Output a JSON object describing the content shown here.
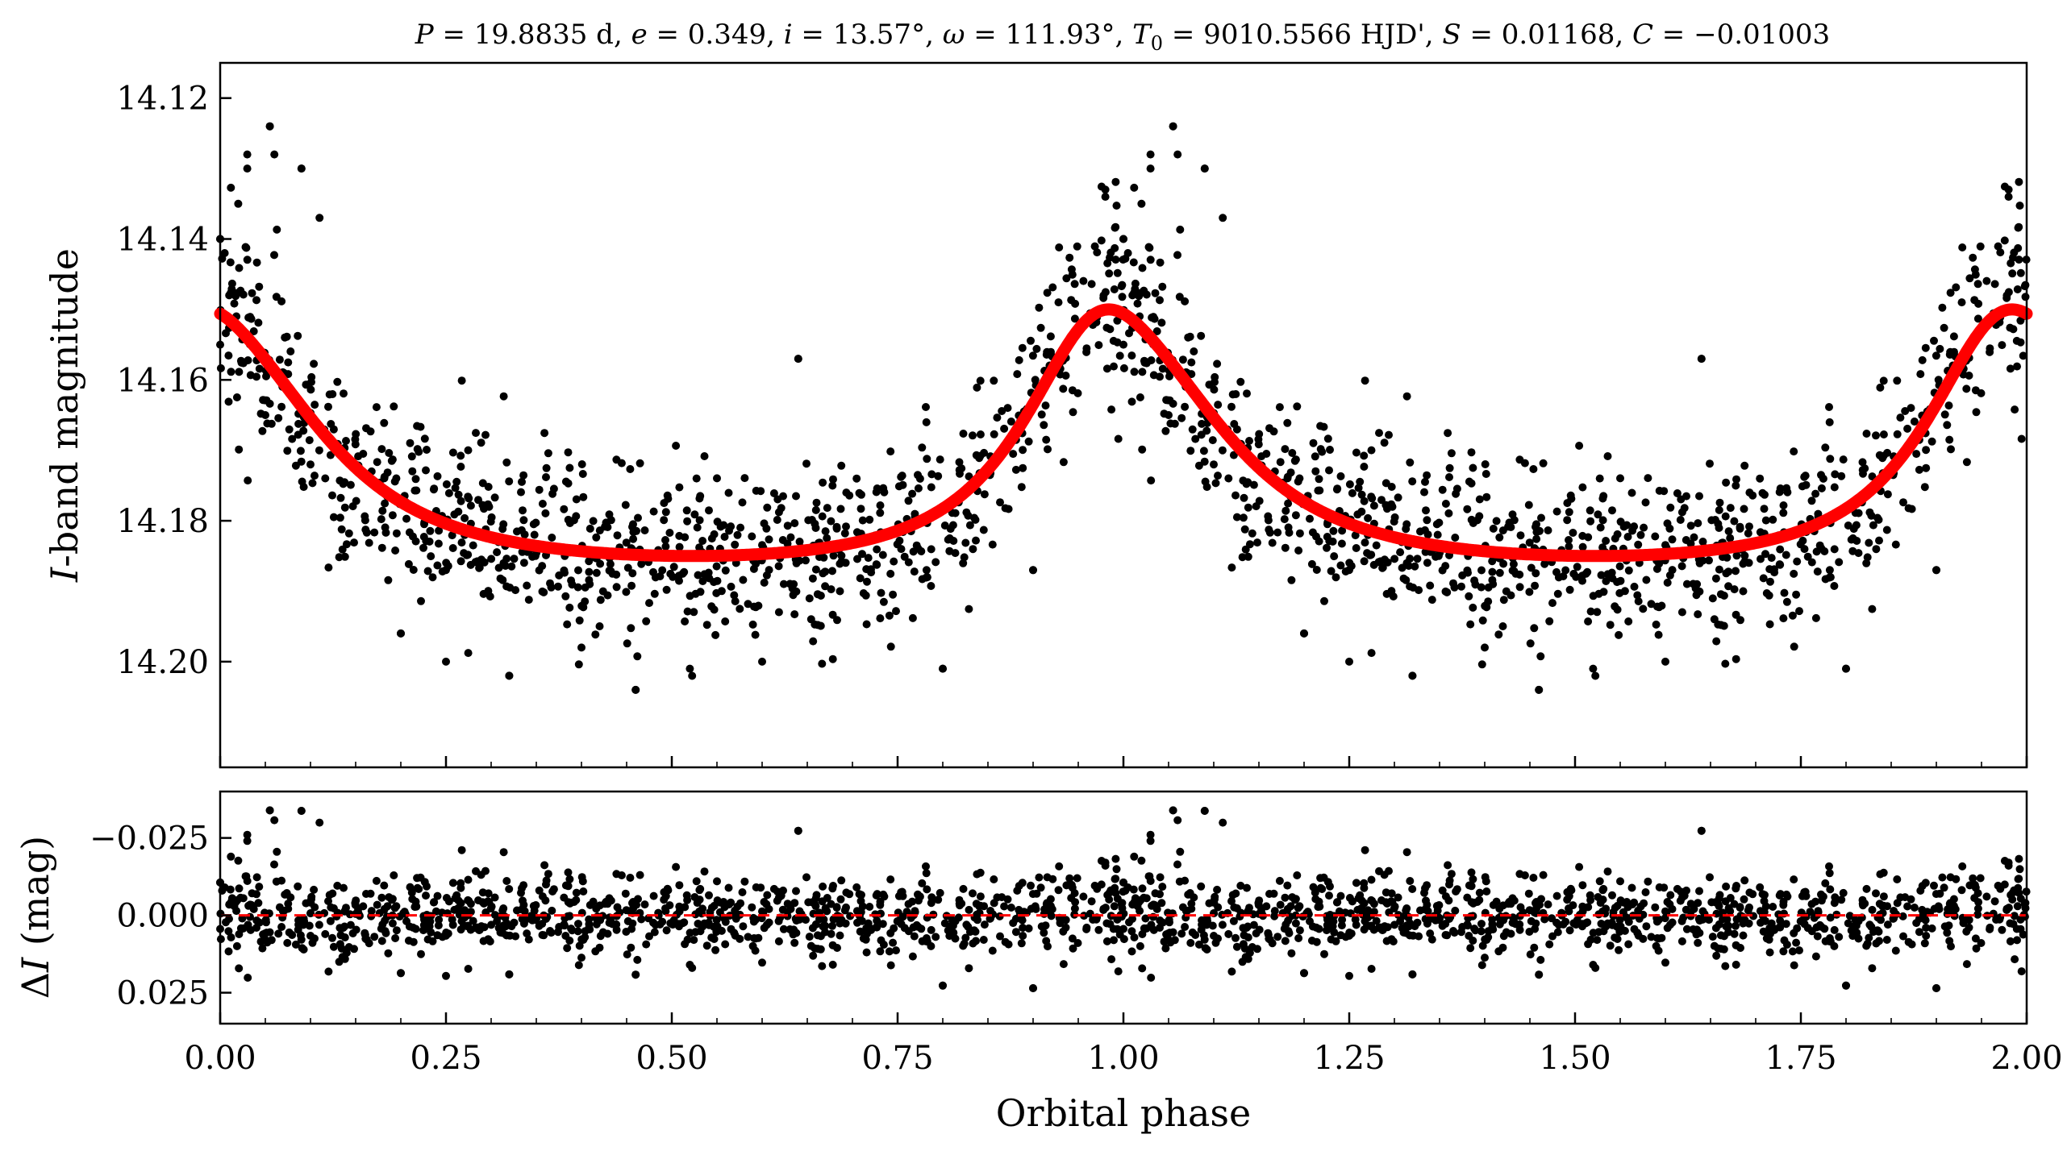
{
  "chart_data": [
    {
      "type": "scatter",
      "panel": "top",
      "title": "P = 19.8835 d, e = 0.349, i = 13.57°, ω = 111.93°, T0 = 9010.5566 HJD', S = 0.01168, C = −0.01003",
      "title_parts": {
        "p_sym": "P",
        "p_val": " = 19.8835 d, ",
        "e_sym": "e",
        "e_val": " = 0.349, ",
        "i_sym": "i",
        "i_val": " = 13.57°, ",
        "w_sym": "ω",
        "w_val": " = 111.93°, ",
        "t_sym": "T",
        "t_sub": "0",
        "t_val": " = 9010.5566 HJD', ",
        "s_sym": "S",
        "s_val": " = 0.01168, ",
        "c_sym": "C",
        "c_val": " = −0.01003"
      },
      "xlabel": "",
      "ylabel": "I-band magnitude",
      "ylabel_parts": {
        "italic": "I",
        "rest": "-band magnitude"
      },
      "xlim": [
        0.0,
        2.0
      ],
      "ylim": [
        14.215,
        14.115
      ],
      "y_inverted": true,
      "y_ticks": [
        "14.12",
        "14.14",
        "14.16",
        "14.18",
        "14.20"
      ],
      "x_ticks_labeled": false,
      "grid": false,
      "series": [
        {
          "kind": "points",
          "color": "#000000",
          "note_points": "~1500 photometric observations per phase cycle, repeated over phase 0–2; dense cloud following the model with scatter of about ±0.01 mag",
          "sample_points": [
            [
              0.0,
              14.155
            ],
            [
              0.005,
              14.142
            ],
            [
              0.01,
              14.148
            ],
            [
              0.02,
              14.135
            ],
            [
              0.03,
              14.13
            ],
            [
              0.055,
              14.124
            ],
            [
              0.06,
              14.128
            ],
            [
              0.09,
              14.13
            ],
            [
              0.11,
              14.137
            ],
            [
              0.05,
              14.165
            ],
            [
              0.1,
              14.172
            ],
            [
              0.15,
              14.172
            ],
            [
              0.2,
              14.196
            ],
            [
              0.25,
              14.2
            ],
            [
              0.32,
              14.202
            ],
            [
              0.4,
              14.198
            ],
            [
              0.46,
              14.204
            ],
            [
              0.52,
              14.201
            ],
            [
              0.6,
              14.2
            ],
            [
              0.64,
              14.157
            ],
            [
              0.8,
              14.201
            ],
            [
              0.9,
              14.187
            ],
            [
              0.98,
              14.133
            ],
            [
              1.0,
              14.14
            ],
            [
              1.03,
              14.128
            ],
            [
              1.055,
              14.124
            ],
            [
              1.09,
              14.13
            ],
            [
              1.2,
              14.196
            ],
            [
              1.32,
              14.202
            ],
            [
              1.46,
              14.204
            ],
            [
              1.64,
              14.157
            ],
            [
              1.8,
              14.201
            ],
            [
              1.9,
              14.187
            ],
            [
              1.98,
              14.134
            ],
            [
              2.0,
              14.14
            ]
          ]
        },
        {
          "kind": "model",
          "color": "#ff0000",
          "description": "Eccentric heartbeat-star model light curve",
          "min_brightness_mag": 14.185,
          "peak_mag": 14.15,
          "peak_phases": [
            0.017,
            1.017
          ],
          "model_params": {
            "P": 19.8835,
            "e": 0.349,
            "i_deg": 13.57,
            "omega_deg": 111.93,
            "S": 0.01168,
            "C": -0.01003
          }
        }
      ]
    },
    {
      "type": "scatter",
      "panel": "bottom",
      "xlabel": "Orbital phase",
      "ylabel": "ΔI (mag)",
      "ylabel_parts": {
        "delta": "Δ",
        "italic": "I",
        "rest": " (mag)"
      },
      "xlim": [
        0.0,
        2.0
      ],
      "ylim": [
        0.035,
        -0.04
      ],
      "y_inverted": true,
      "x_ticks": [
        "0.00",
        "0.25",
        "0.50",
        "0.75",
        "1.00",
        "1.25",
        "1.50",
        "1.75",
        "2.00"
      ],
      "y_ticks": [
        "−0.025",
        "0.000",
        "0.025"
      ],
      "grid": false,
      "series": [
        {
          "kind": "points",
          "color": "#000000",
          "note_points": "Residuals of observations minus model, scatter roughly within ±0.02 mag",
          "sample_points": [
            [
              0.04,
              -0.027
            ],
            [
              0.06,
              -0.029
            ],
            [
              0.1,
              -0.031
            ],
            [
              0.11,
              -0.033
            ],
            [
              0.11,
              0.019
            ],
            [
              0.3,
              0.02
            ],
            [
              0.64,
              -0.027
            ],
            [
              0.8,
              0.024
            ],
            [
              0.9,
              0.022
            ],
            [
              1.04,
              -0.027
            ],
            [
              1.06,
              -0.029
            ],
            [
              1.1,
              -0.031
            ],
            [
              1.11,
              -0.033
            ],
            [
              1.64,
              -0.027
            ],
            [
              1.8,
              0.024
            ],
            [
              1.9,
              0.022
            ]
          ]
        },
        {
          "kind": "reference_line",
          "color": "#ff0000",
          "y": 0.0,
          "style": "dashed"
        }
      ]
    }
  ]
}
